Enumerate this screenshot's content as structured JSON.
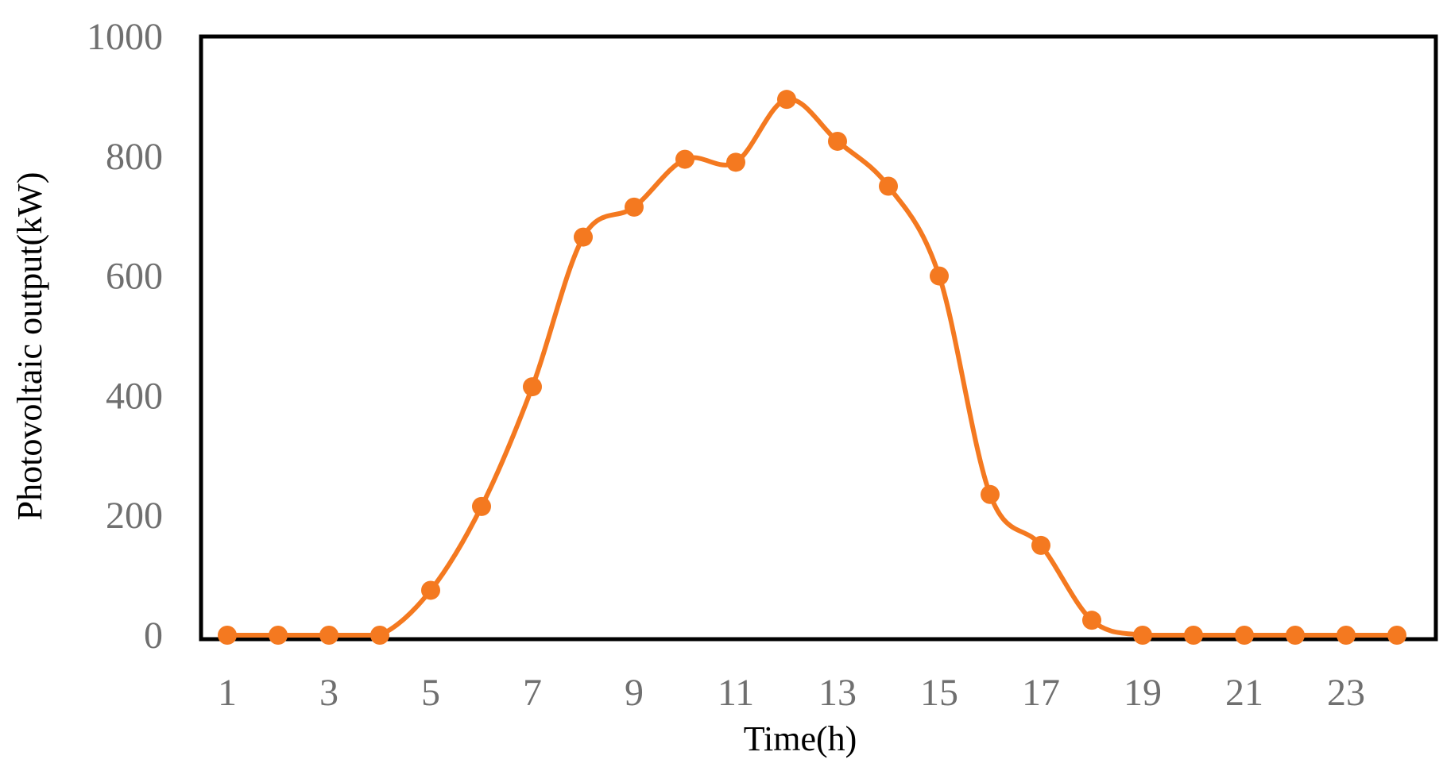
{
  "chart_data": {
    "type": "line",
    "title": "",
    "xlabel": "Time(h)",
    "ylabel": "Photovoltaic output(kW)",
    "x": [
      1,
      2,
      3,
      4,
      5,
      6,
      7,
      8,
      9,
      10,
      11,
      12,
      13,
      14,
      15,
      16,
      17,
      18,
      19,
      20,
      21,
      22,
      23,
      24
    ],
    "series": [
      {
        "color": "#f47920",
        "values": [
          0,
          0,
          0,
          0,
          75,
          215,
          415,
          665,
          715,
          795,
          790,
          895,
          825,
          750,
          600,
          235,
          150,
          25,
          0,
          0,
          0,
          0,
          0,
          0
        ]
      }
    ],
    "xticks": [
      "1",
      "3",
      "5",
      "7",
      "9",
      "11",
      "13",
      "15",
      "17",
      "19",
      "21",
      "23"
    ],
    "xtick_values": [
      1,
      3,
      5,
      7,
      9,
      11,
      13,
      15,
      17,
      19,
      21,
      23
    ],
    "yticks": [
      "0",
      "200",
      "400",
      "600",
      "800",
      "1000"
    ],
    "ytick_values": [
      0,
      200,
      400,
      600,
      800,
      1000
    ],
    "ylim": [
      0,
      1000
    ],
    "grid": false,
    "legend": "none",
    "marker": "circle",
    "smooth": true
  }
}
